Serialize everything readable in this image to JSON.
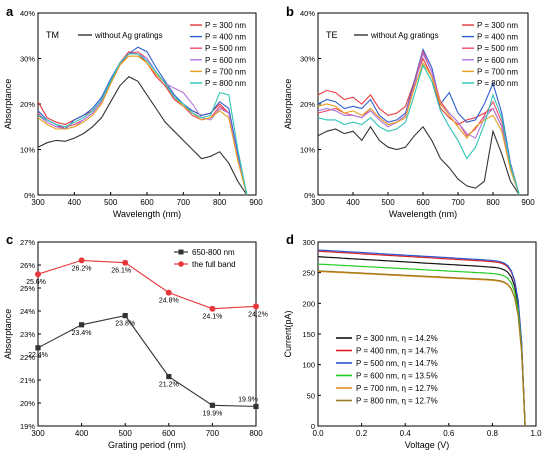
{
  "panel_letters": [
    "a",
    "b",
    "c",
    "d"
  ],
  "palette": {
    "p300": "#e8383d",
    "p400": "#2f5fd0",
    "p500": "#f04a6a",
    "p600": "#b07ae0",
    "p700": "#e6a020",
    "p800": "#2ec4b6",
    "ref": "#333333",
    "c650": "#333333",
    "cfull": "#e8383d",
    "d300": "#111111",
    "d400": "#e02020",
    "d500": "#2a55d0",
    "d600": "#22cc22",
    "d700": "#e69020",
    "d800": "#9a7a20"
  },
  "chart_data": [
    {
      "panel": "a",
      "type": "line",
      "corner_label": "TM",
      "xlabel": "Wavelength (nm)",
      "ylabel": "Absorptance",
      "xlim": [
        300,
        900
      ],
      "ylim": [
        0,
        40
      ],
      "xticks": [
        300,
        400,
        500,
        600,
        700,
        800,
        900
      ],
      "xtick_labels": [
        "300",
        "400",
        "500",
        "600",
        "700",
        "800",
        "900"
      ],
      "yticks": [
        0,
        10,
        20,
        30,
        40
      ],
      "ytick_labels": [
        "0%",
        "10%",
        "20%",
        "30%",
        "40%"
      ],
      "legend_position": "top-right",
      "x": [
        300,
        325,
        350,
        375,
        400,
        425,
        450,
        475,
        500,
        525,
        550,
        575,
        600,
        625,
        650,
        675,
        700,
        725,
        750,
        775,
        800,
        825,
        850,
        875
      ],
      "reference": {
        "name": "without Ag gratings",
        "color_key": "ref",
        "values": [
          10.5,
          11.5,
          12,
          11.8,
          12.5,
          13.5,
          15,
          17,
          20.5,
          24,
          26,
          25,
          22,
          19,
          16,
          14,
          12,
          10,
          8,
          8.5,
          9.5,
          7,
          3,
          0
        ]
      },
      "series": [
        {
          "name": "P = 300 nm",
          "color_key": "p300",
          "values": [
            20.5,
            17,
            16,
            15.5,
            16.5,
            17.5,
            18.5,
            21,
            25,
            29,
            31.5,
            31,
            29,
            26,
            24,
            21,
            19.5,
            18.5,
            17.5,
            18,
            20,
            18,
            8,
            0
          ]
        },
        {
          "name": "P = 400 nm",
          "color_key": "p400",
          "values": [
            18.5,
            16.5,
            15.5,
            14.5,
            16.5,
            17.5,
            19,
            21.5,
            25.5,
            29,
            31,
            32.5,
            31.5,
            28,
            25,
            22,
            20,
            18.5,
            17.5,
            18,
            20.5,
            19,
            9,
            0
          ]
        },
        {
          "name": "P = 500 nm",
          "color_key": "p500",
          "values": [
            18,
            16,
            15,
            15,
            15.5,
            16.5,
            18,
            20.5,
            24.5,
            28.5,
            31,
            31.5,
            30,
            27,
            24.5,
            21.5,
            19.5,
            17.5,
            16.5,
            17,
            19.5,
            18,
            8,
            0
          ]
        },
        {
          "name": "P = 600 nm",
          "color_key": "p600",
          "values": [
            17.5,
            16,
            15,
            14.5,
            15,
            16.5,
            18,
            20.5,
            25,
            29,
            31,
            31,
            30,
            27,
            24.5,
            23.5,
            22.5,
            20,
            17,
            16.5,
            19,
            18,
            8,
            0
          ]
        },
        {
          "name": "P = 700 nm",
          "color_key": "p700",
          "values": [
            17,
            15.5,
            14.5,
            14.5,
            15,
            16,
            17.5,
            20,
            24.5,
            28.5,
            30.5,
            30.5,
            29,
            26.5,
            24.5,
            21.5,
            19.5,
            18,
            16.5,
            17,
            18.5,
            17,
            7.5,
            0
          ]
        },
        {
          "name": "P = 800 nm",
          "color_key": "p800",
          "values": [
            17.5,
            16.5,
            15.5,
            15,
            16,
            17,
            18.5,
            21,
            25,
            29,
            31,
            31,
            29.5,
            27,
            24.5,
            21.5,
            20,
            18,
            17,
            17.5,
            22.5,
            22,
            10,
            0
          ]
        }
      ]
    },
    {
      "panel": "b",
      "type": "line",
      "corner_label": "TE",
      "xlabel": "Wavelength (nm)",
      "ylabel": "Absorptance",
      "xlim": [
        300,
        900
      ],
      "ylim": [
        0,
        40
      ],
      "xticks": [
        300,
        400,
        500,
        600,
        700,
        800,
        900
      ],
      "xtick_labels": [
        "300",
        "400",
        "500",
        "600",
        "700",
        "800",
        "900"
      ],
      "yticks": [
        0,
        10,
        20,
        30,
        40
      ],
      "ytick_labels": [
        "0%",
        "10%",
        "20%",
        "30%",
        "40%"
      ],
      "legend_position": "top-right",
      "x": [
        300,
        325,
        350,
        375,
        400,
        425,
        450,
        475,
        500,
        525,
        550,
        575,
        600,
        625,
        650,
        675,
        700,
        725,
        750,
        775,
        800,
        825,
        850,
        875
      ],
      "reference": {
        "name": "without Ag gratings",
        "color_key": "ref",
        "values": [
          13,
          14,
          14.5,
          13.5,
          14,
          12,
          15,
          12,
          10.5,
          10,
          10.5,
          13,
          15,
          12,
          8,
          6,
          3.5,
          2,
          1.5,
          3,
          14,
          9,
          3,
          0
        ]
      },
      "series": [
        {
          "name": "P = 300 nm",
          "color_key": "p300",
          "values": [
            22,
            23,
            22.5,
            21,
            21.5,
            20,
            22,
            19,
            17.5,
            18,
            19.5,
            25,
            30,
            26,
            19,
            17,
            15.5,
            16.5,
            17,
            18,
            19,
            15,
            6,
            0
          ]
        },
        {
          "name": "P = 400 nm",
          "color_key": "p400",
          "values": [
            20,
            21,
            20.5,
            19,
            19.5,
            19,
            21,
            17.5,
            16,
            16.5,
            18,
            25,
            32,
            28,
            20,
            22.5,
            18,
            16,
            16.5,
            20,
            24.5,
            18,
            7,
            0
          ]
        },
        {
          "name": "P = 500 nm",
          "color_key": "p500",
          "values": [
            18,
            18.5,
            19,
            18,
            17.5,
            17,
            19,
            17,
            15.5,
            16,
            17.5,
            24.5,
            31.5,
            27,
            20.5,
            18,
            16,
            13,
            14.5,
            17.5,
            20.5,
            16,
            6.5,
            0
          ]
        },
        {
          "name": "P = 600 nm",
          "color_key": "p600",
          "values": [
            18.5,
            19,
            18.5,
            17.5,
            17.5,
            17,
            18.5,
            16.5,
            15,
            16,
            17.5,
            24,
            31,
            27,
            20,
            18,
            16,
            13.5,
            12.5,
            17,
            19,
            15,
            6,
            0
          ]
        },
        {
          "name": "P = 700 nm",
          "color_key": "p700",
          "values": [
            19.5,
            20,
            19.5,
            18,
            18.5,
            17.5,
            19,
            17,
            15.5,
            16,
            17,
            23.5,
            29,
            26,
            20,
            17.5,
            15,
            12.5,
            15,
            16.5,
            17.5,
            14,
            5.5,
            0
          ]
        },
        {
          "name": "P = 800 nm",
          "color_key": "p800",
          "values": [
            17,
            16.5,
            16.5,
            15.5,
            16,
            15.5,
            17,
            15,
            14,
            14.5,
            16,
            22,
            28.5,
            25,
            18.5,
            15,
            12,
            8,
            10.5,
            15.5,
            22,
            17,
            6.5,
            0
          ]
        }
      ]
    },
    {
      "panel": "c",
      "type": "line",
      "xlabel": "Grating period (nm)",
      "ylabel": "Absorptance",
      "xlim": [
        300,
        800
      ],
      "ylim": [
        19,
        27
      ],
      "xticks": [
        300,
        400,
        500,
        600,
        700,
        800
      ],
      "xtick_labels": [
        "300",
        "400",
        "500",
        "600",
        "700",
        "800"
      ],
      "yticks": [
        19,
        20,
        21,
        22,
        23,
        24,
        25,
        26,
        27
      ],
      "ytick_labels": [
        "19%",
        "20%",
        "21%",
        "22%",
        "23%",
        "24%",
        "25%",
        "26%",
        "27%"
      ],
      "legend_position": "top-right",
      "x": [
        300,
        400,
        500,
        600,
        700,
        800
      ],
      "series": [
        {
          "name": "650-800 nm",
          "color_key": "c650",
          "marker": "square",
          "values": [
            22.4,
            23.4,
            23.8,
            21.15,
            19.9,
            19.85
          ],
          "data_labels": [
            "22.4%",
            "23.4%",
            "23.8%",
            "21.2%",
            "19.9%",
            "19.9%"
          ]
        },
        {
          "name": "the full band",
          "color_key": "cfull",
          "marker": "circle",
          "values": [
            25.6,
            26.2,
            26.1,
            24.8,
            24.1,
            24.2
          ],
          "data_labels": [
            "25.6%",
            "26.2%",
            "26.1%",
            "24.8%",
            "24.1%",
            "24.2%"
          ]
        }
      ]
    },
    {
      "panel": "d",
      "type": "line",
      "xlabel": "Voltage (V)",
      "ylabel": "Current(pA)",
      "xlim": [
        0,
        1.0
      ],
      "ylim": [
        0,
        300
      ],
      "xticks": [
        0,
        0.2,
        0.4,
        0.6,
        0.8,
        1.0
      ],
      "xtick_labels": [
        "0.0",
        "0.2",
        "0.4",
        "0.6",
        "0.8",
        "1.0"
      ],
      "yticks": [
        0,
        50,
        100,
        150,
        200,
        250,
        300
      ],
      "ytick_labels": [
        "0",
        "50",
        "100",
        "150",
        "200",
        "250",
        "300"
      ],
      "legend_position": "bottom-left",
      "voc": 0.95,
      "series": [
        {
          "name": "P = 300 nm, η = 14.2%",
          "color_key": "d300",
          "isc": 276,
          "droop": 20
        },
        {
          "name": "P = 400 nm, η = 14.7%",
          "color_key": "d400",
          "isc": 285,
          "droop": 20
        },
        {
          "name": "P = 500 nm, η = 14.7%",
          "color_key": "d500",
          "isc": 287,
          "droop": 20
        },
        {
          "name": "P = 600 nm, η = 13.5%",
          "color_key": "d600",
          "isc": 264,
          "droop": 18
        },
        {
          "name": "P = 700 nm, η = 12.7%",
          "color_key": "d700",
          "isc": 252,
          "droop": 17
        },
        {
          "name": "P = 800 nm, η = 12.7%",
          "color_key": "d800",
          "isc": 253,
          "droop": 17
        }
      ]
    }
  ]
}
